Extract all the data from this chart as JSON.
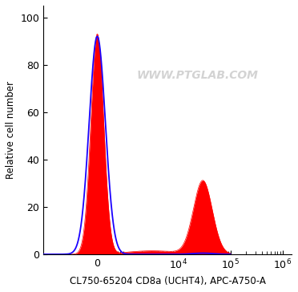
{
  "xlabel": "CL750-65204 CD8a (UCHT4), APC-A750-A",
  "ylabel": "Relative cell number",
  "ylim": [
    0,
    105
  ],
  "yticks": [
    0,
    20,
    40,
    60,
    80,
    100
  ],
  "watermark": "WWW.PTGLAB.COM",
  "bg_color": "#ffffff",
  "fill_color_red": "#ff0000",
  "line_color_blue": "#1a00ff",
  "xlabel_fontsize": 8.5,
  "ylabel_fontsize": 8.5,
  "tick_fontsize": 9,
  "linthresh": 1000,
  "linscale": 0.5
}
